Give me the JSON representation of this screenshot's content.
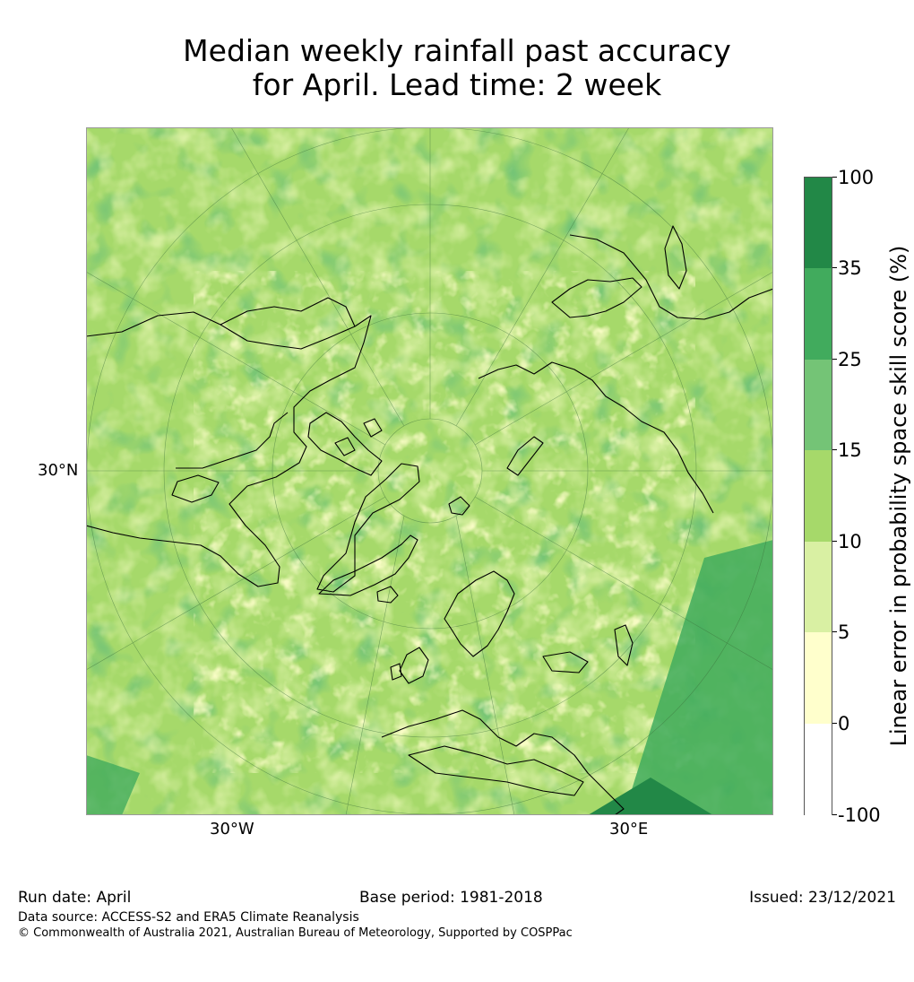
{
  "title": {
    "line1": "Median weekly rainfall past accuracy",
    "line2": "for April. Lead time: 2 week"
  },
  "map": {
    "projection": "north-polar-stereographic",
    "lat_label": "30°N",
    "lon_labels": [
      "30°W",
      "30°E"
    ]
  },
  "colorbar": {
    "label": "Linear error in probability space skill score (%)",
    "ticks": [
      "100",
      "35",
      "25",
      "15",
      "10",
      "5",
      "0",
      "-100"
    ],
    "colors": [
      "#228847",
      "#41ab5d",
      "#74c476",
      "#a6d96a",
      "#d9f0a3",
      "#ffffcc",
      "#ffffff"
    ]
  },
  "footer": {
    "run_date": "Run date: April",
    "base_period": "Base period: 1981-2018",
    "issued": "Issued: 23/12/2021",
    "data_source": "Data source: ACCESS-S2 and ERA5 Climate Reanalysis",
    "copyright": "© Commonwealth of Australia 2021, Australian Bureau of Meteorology, Supported by COSPPac"
  }
}
